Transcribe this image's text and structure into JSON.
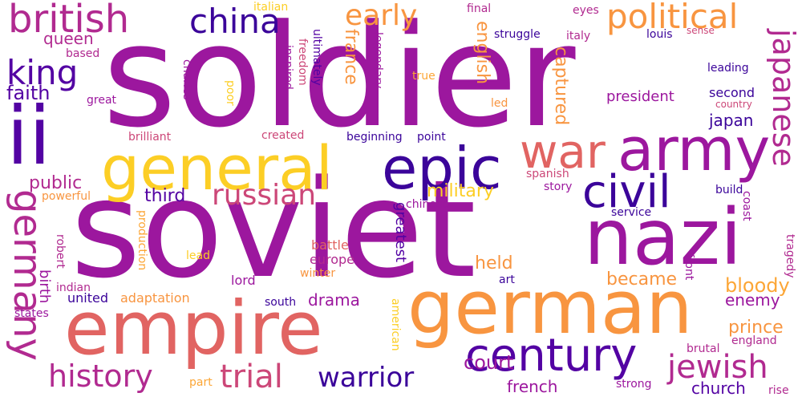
{
  "palette": {
    "purple": "#9c179e",
    "indigo": "#5302a3",
    "deep": "#3b049a",
    "magenta": "#b12a90",
    "pink": "#cc4778",
    "coral": "#e16462",
    "orange": "#f89540",
    "amber": "#fca636",
    "yellow": "#fcce25"
  },
  "words": [
    "soldier",
    "soviet",
    "ii",
    "general",
    "german",
    "empire",
    "nazi",
    "army",
    "epic",
    "war",
    "civil",
    "century",
    "british",
    "china",
    "political",
    "early",
    "king",
    "japanese",
    "germany",
    "russian",
    "history",
    "trial",
    "warrior",
    "jewish",
    "military",
    "faith",
    "queen",
    "public",
    "third",
    "japan",
    "captured",
    "english",
    "france",
    "based",
    "great",
    "charles",
    "poor",
    "inspired",
    "freedom",
    "ultimately",
    "legendary",
    "true",
    "led",
    "struggle",
    "italy",
    "louis",
    "sense",
    "eyes",
    "final",
    "italian",
    "president",
    "second",
    "leading",
    "country",
    "brilliant",
    "created",
    "beginning",
    "point",
    "spanish",
    "story",
    "build",
    "chinese",
    "service",
    "powerful",
    "birth",
    "robert",
    "battle",
    "europe",
    "winter",
    "lead",
    "production",
    "greatest",
    "held",
    "became",
    "bloody",
    "enemy",
    "prince",
    "england",
    "brutal",
    "coast",
    "tragedy",
    "front",
    "drama",
    "lord",
    "indian",
    "adaptation",
    "united",
    "south",
    "art",
    "states",
    "american",
    "part",
    "court",
    "french",
    "church",
    "strong",
    "rise"
  ]
}
